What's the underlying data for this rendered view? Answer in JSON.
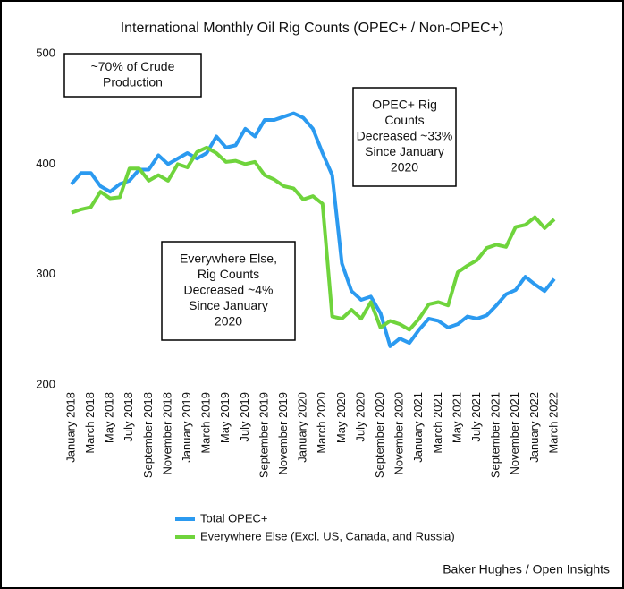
{
  "chart_data": {
    "type": "line",
    "title": "International Monthly Oil Rig Counts (OPEC+ / Non-OPEC+)",
    "source": "Baker Hughes / Open Insights",
    "categories": [
      "January 2018",
      null,
      "March 2018",
      null,
      "May 2018",
      null,
      "July 2018",
      null,
      "September 2018",
      null,
      "November 2018",
      null,
      "January 2019",
      null,
      "March 2019",
      null,
      "May 2019",
      null,
      "July 2019",
      null,
      "September 2019",
      null,
      "November 2019",
      null,
      "January 2020",
      null,
      "March 2020",
      null,
      "May 2020",
      null,
      "July 2020",
      null,
      "September 2020",
      null,
      "November 2020",
      null,
      "January 2021",
      null,
      "March 2021",
      null,
      "May 2021",
      null,
      "July 2021",
      null,
      "September 2021",
      null,
      "November 2021",
      null,
      "January 2022",
      null,
      "March 2022"
    ],
    "series": [
      {
        "name": "Total OPEC+",
        "color": "#2b9af0",
        "values": [
          382,
          392,
          392,
          380,
          375,
          382,
          385,
          395,
          395,
          408,
          400,
          405,
          410,
          405,
          410,
          425,
          415,
          417,
          432,
          425,
          440,
          440,
          443,
          446,
          442,
          432,
          410,
          390,
          310,
          285,
          277,
          280,
          265,
          235,
          242,
          238,
          250,
          260,
          258,
          252,
          255,
          262,
          260,
          263,
          272,
          282,
          286,
          298,
          291,
          285,
          296
        ]
      },
      {
        "name": "Everywhere Else (Excl. US, Canada, and Russia)",
        "color": "#6fd43c",
        "values": [
          356,
          359,
          361,
          375,
          369,
          370,
          396,
          396,
          385,
          390,
          385,
          400,
          397,
          411,
          415,
          410,
          402,
          403,
          400,
          402,
          390,
          386,
          380,
          378,
          368,
          371,
          364,
          262,
          260,
          268,
          260,
          275,
          252,
          258,
          255,
          250,
          260,
          273,
          275,
          272,
          302,
          308,
          313,
          324,
          327,
          325,
          343,
          345,
          352,
          342,
          350
        ]
      }
    ],
    "ylim": [
      200,
      500
    ],
    "yticks": [
      200,
      300,
      400,
      500
    ],
    "grid": false,
    "legend": "bottom",
    "annotations": [
      {
        "lines": [
          "~70% of Crude",
          "Production"
        ]
      },
      {
        "lines": [
          "OPEC+ Rig",
          "Counts",
          "Decreased ~33%",
          "Since January",
          "2020"
        ]
      },
      {
        "lines": [
          "Everywhere Else,",
          "Rig Counts",
          "Decreased ~4%",
          "Since January",
          "2020"
        ]
      }
    ]
  }
}
